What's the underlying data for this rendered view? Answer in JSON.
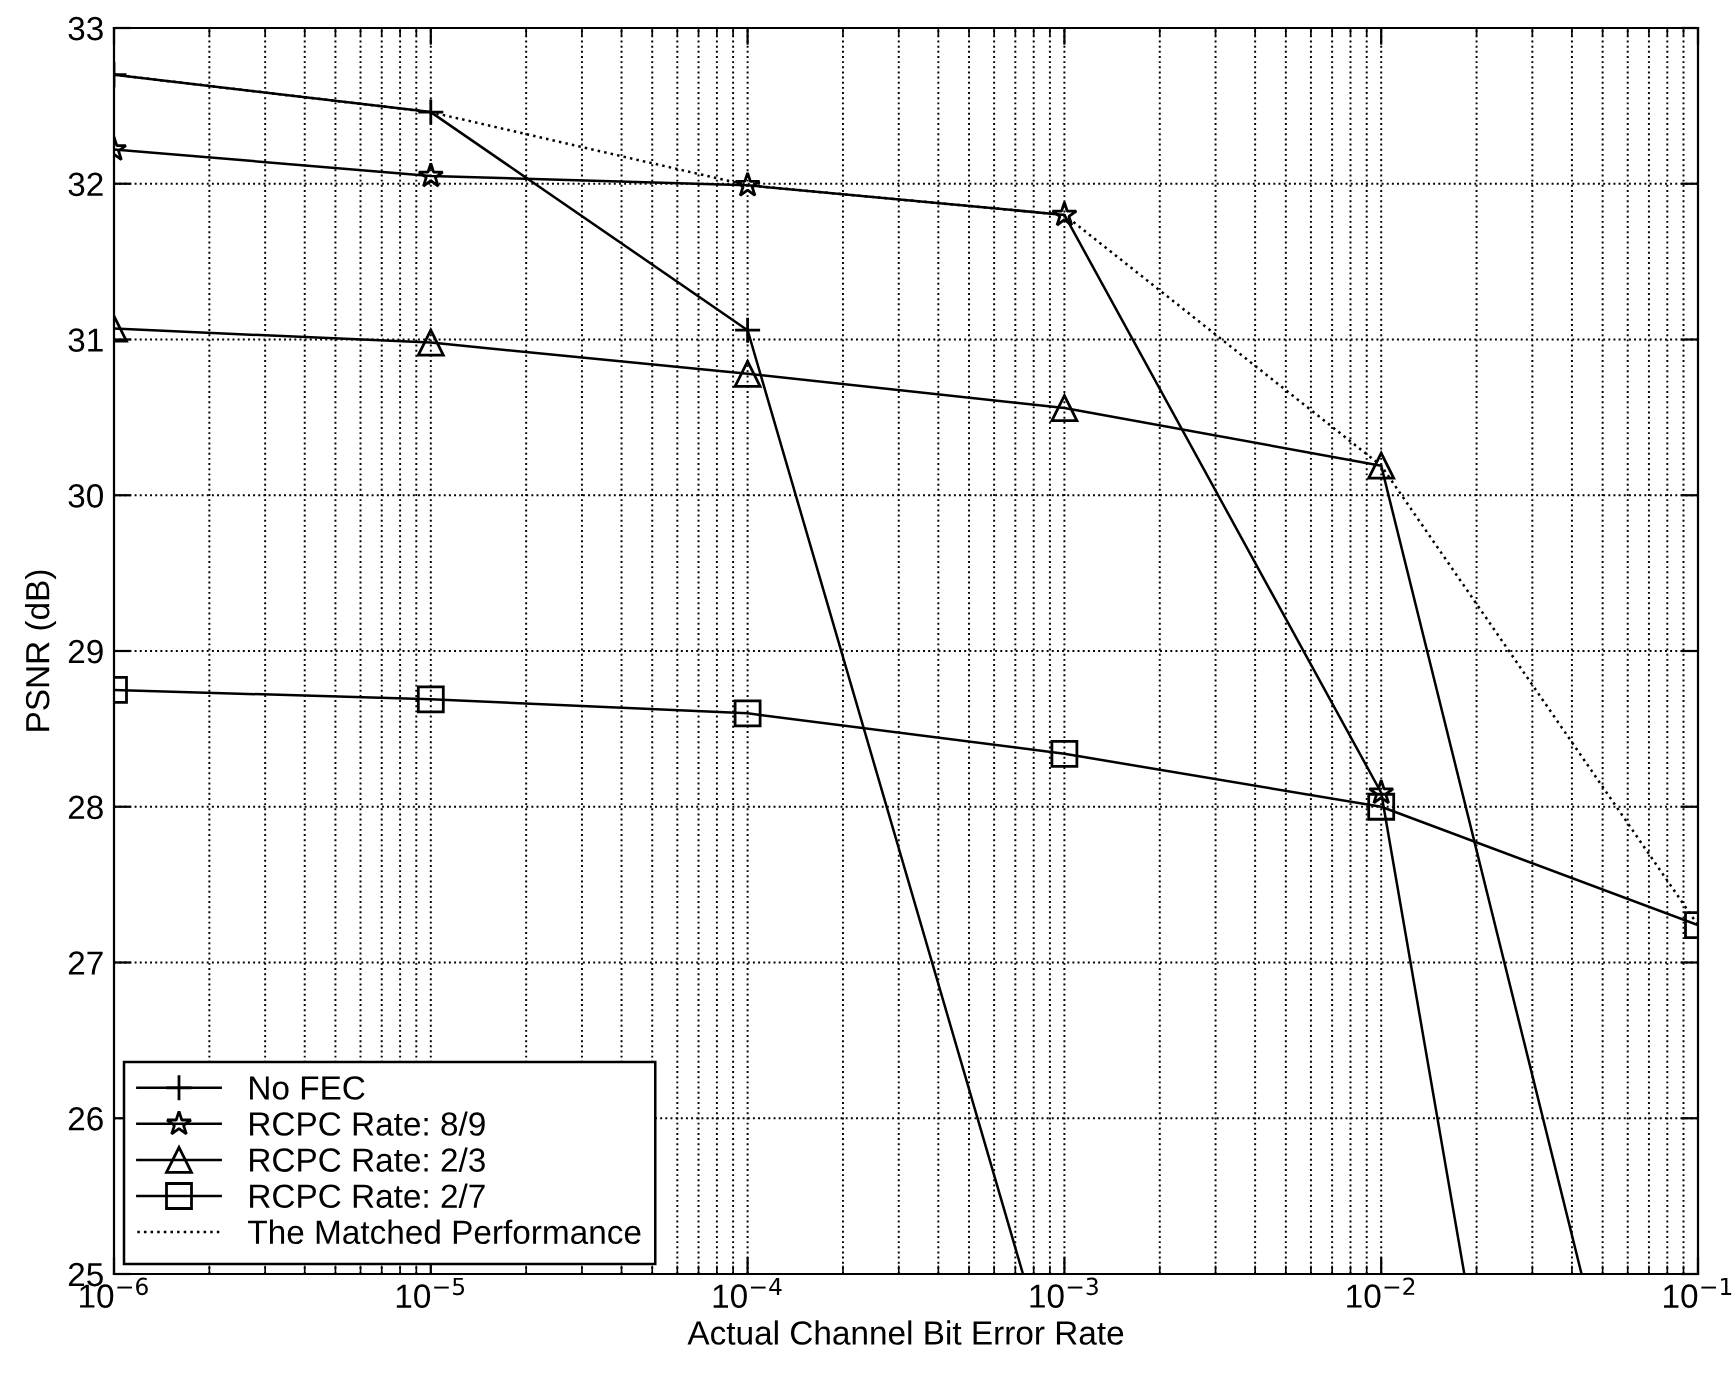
{
  "chart_data": {
    "type": "line",
    "xlabel": "Actual Channel Bit Error Rate",
    "ylabel": "PSNR (dB)",
    "log": "x",
    "xlim": [
      1e-06,
      0.1
    ],
    "xticks": [
      {
        "value": 1e-06,
        "label": "10$^{−6}$"
      },
      {
        "value": 1e-05,
        "label": "10$^{−5}$"
      },
      {
        "value": 0.0001,
        "label": "10$^{−4}$"
      },
      {
        "value": 0.001,
        "label": "10$^{−3}$"
      },
      {
        "value": 0.01,
        "label": "10$^{−2}$"
      },
      {
        "value": 0.1,
        "label": "10$^{−1}$"
      }
    ],
    "ylim": [
      25,
      33
    ],
    "yticks": [
      25,
      26,
      27,
      28,
      29,
      30,
      31,
      32,
      33
    ],
    "grid": true,
    "legend": "bottom left",
    "series": [
      {
        "name": "No FEC",
        "color": "#000000",
        "marker": "cross",
        "line_style": "solid",
        "x": [
          1e-06,
          1e-05,
          0.0001,
          0.00074
        ],
        "values": [
          32.7,
          32.46,
          31.06,
          25
        ]
      },
      {
        "name": "RCPC Rate: 8/9",
        "color": "#000000",
        "marker": "star",
        "line_style": "solid",
        "x": [
          1e-06,
          1e-05,
          0.0001,
          0.001,
          0.01,
          0.0183
        ],
        "values": [
          32.22,
          32.05,
          31.99,
          31.8,
          28.09,
          25
        ]
      },
      {
        "name": "RCPC Rate: 2/3",
        "color": "#000000",
        "marker": "triangle",
        "line_style": "solid",
        "x": [
          1e-06,
          1e-05,
          0.0001,
          0.001,
          0.01,
          0.0429
        ],
        "values": [
          31.07,
          30.98,
          30.78,
          30.56,
          30.19,
          25
        ]
      },
      {
        "name": "RCPC Rate: 2/7",
        "color": "#000000",
        "marker": "square",
        "line_style": "solid",
        "x": [
          1e-06,
          1e-05,
          0.0001,
          0.001,
          0.01,
          0.1
        ],
        "values": [
          28.75,
          28.69,
          28.6,
          28.34,
          28.0,
          27.24
        ]
      },
      {
        "name": "The Matched Performance",
        "color": "#000000",
        "marker": "none",
        "line_style": "dotted",
        "x": [
          1e-06,
          1e-05,
          0.0001,
          0.001,
          0.01,
          0.1
        ],
        "values": [
          32.7,
          32.46,
          31.99,
          31.8,
          30.19,
          27.24
        ]
      }
    ]
  }
}
